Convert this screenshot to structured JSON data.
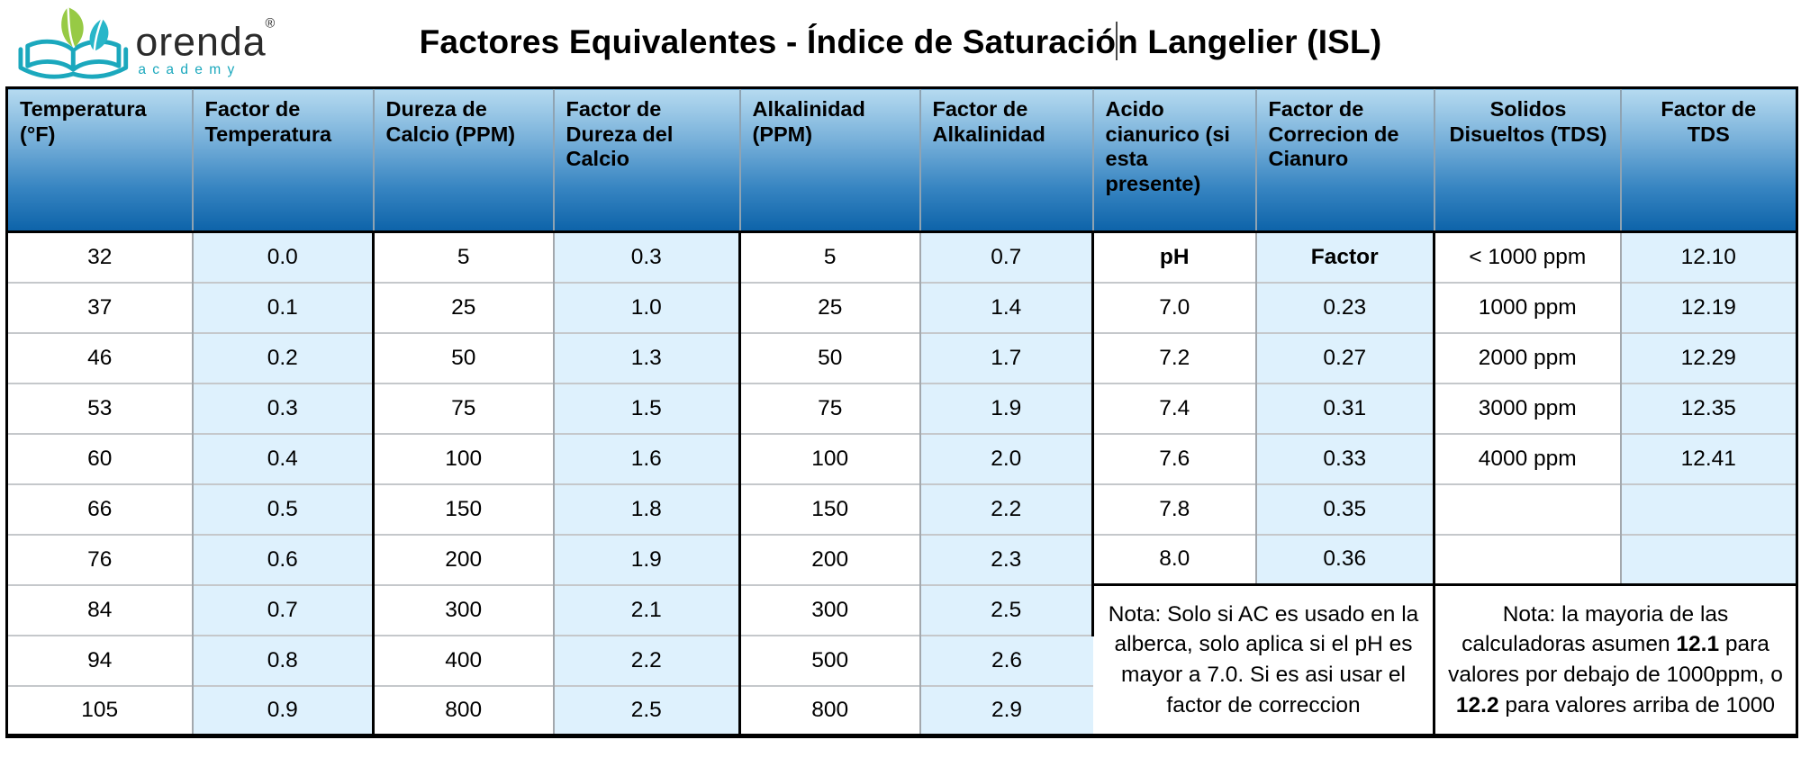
{
  "logo": {
    "brand": "orenda",
    "registered_mark": "®",
    "subtitle": "academy"
  },
  "title": {
    "part1": "Factores Equivalentes - Índice de Saturació",
    "part2": "n Langelier (ISL)"
  },
  "colors": {
    "header_gradient_top": "#b5daf0",
    "header_gradient_bottom": "#0d63a9",
    "factor_cell_blue": "#def1fd",
    "logo_teal": "#1ba8bd",
    "logo_green": "#8dc63f",
    "border_black": "#000000",
    "thin_line_gray": "#a3a8ad"
  },
  "table": {
    "headers": [
      "Temperatura (°F)",
      "Factor de Temperatura",
      "Dureza de Calcio (PPM)",
      "Factor de Dureza del Calcio",
      "Alkalinidad (PPM)",
      "Factor de Alkalinidad",
      "Acido cianurico (si esta presente)",
      "Factor de Correcion de Cianuro",
      "Solidos Disueltos (TDS)",
      "Factor de TDS"
    ],
    "rows": [
      [
        "32",
        "0.0",
        "5",
        "0.3",
        "5",
        "0.7",
        "pH",
        "Factor",
        "< 1000 ppm",
        "12.10"
      ],
      [
        "37",
        "0.1",
        "25",
        "1.0",
        "25",
        "1.4",
        "7.0",
        "0.23",
        "1000 ppm",
        "12.19"
      ],
      [
        "46",
        "0.2",
        "50",
        "1.3",
        "50",
        "1.7",
        "7.2",
        "0.27",
        "2000 ppm",
        "12.29"
      ],
      [
        "53",
        "0.3",
        "75",
        "1.5",
        "75",
        "1.9",
        "7.4",
        "0.31",
        "3000 ppm",
        "12.35"
      ],
      [
        "60",
        "0.4",
        "100",
        "1.6",
        "100",
        "2.0",
        "7.6",
        "0.33",
        "4000 ppm",
        "12.41"
      ],
      [
        "66",
        "0.5",
        "150",
        "1.8",
        "150",
        "2.2",
        "7.8",
        "0.35",
        "",
        ""
      ],
      [
        "76",
        "0.6",
        "200",
        "1.9",
        "200",
        "2.3",
        "8.0",
        "0.36",
        "",
        ""
      ],
      [
        "84",
        "0.7",
        "300",
        "2.1",
        "300",
        "2.5"
      ],
      [
        "94",
        "0.8",
        "400",
        "2.2",
        "500",
        "2.6"
      ],
      [
        "105",
        "0.9",
        "800",
        "2.5",
        "800",
        "2.9"
      ]
    ],
    "notes": {
      "cyanuric_acid": "Nota: Solo si AC es usado en la alberca, solo aplica si el pH es mayor a 7.0. Si es asi usar el factor de correccion",
      "tds_segments": [
        {
          "text": "Nota: la mayoria de las calculadoras asumen "
        },
        {
          "text": "12.1",
          "bold": true
        },
        {
          "text": " para valores por debajo de 1000ppm, o "
        },
        {
          "text": "12.2",
          "bold": true
        },
        {
          "text": " para valores arriba de 1000"
        }
      ]
    }
  }
}
